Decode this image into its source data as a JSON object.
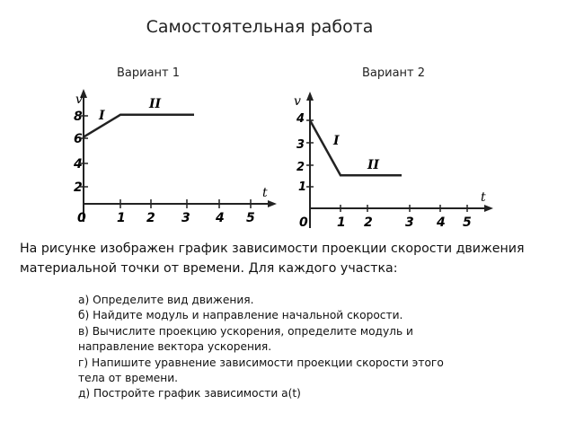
{
  "title": "Самостоятельная работа",
  "variant1": {
    "label": "Вариант 1",
    "y_axis": "v",
    "x_axis": "t",
    "y_ticks": [
      "2",
      "4",
      "6",
      "8"
    ],
    "x_ticks": [
      "0",
      "1",
      "2",
      "3",
      "4",
      "5"
    ],
    "segment_labels": [
      "I",
      "II"
    ],
    "points": [
      [
        0,
        6
      ],
      [
        1,
        8
      ],
      [
        3,
        8
      ]
    ]
  },
  "variant2": {
    "label": "Вариант 2",
    "y_axis": "v",
    "x_axis": "t",
    "y_ticks": [
      "1",
      "2",
      "3",
      "4"
    ],
    "x_ticks": [
      "0",
      "1",
      "2",
      "3",
      "4",
      "5"
    ],
    "segment_labels": [
      "I",
      "II"
    ],
    "points": [
      [
        0,
        4
      ],
      [
        1,
        1.5
      ],
      [
        3,
        1.5
      ]
    ]
  },
  "intro": "На рисунке изображен график зависимости проекции скорости движения материальной точки от времени.  Для каждого участка:",
  "tasks": {
    "a": "а) Определите вид движения.",
    "b": "б) Найдите модуль и направление начальной скорости.",
    "c": "в) Вычислите проекцию ускорения, определите модуль и направление вектора ускорения.",
    "d": "г) Напишите уравнение зависимости проекции скорости этого тела от времени.",
    "e": "д) Постройте график зависимости а(t)"
  }
}
